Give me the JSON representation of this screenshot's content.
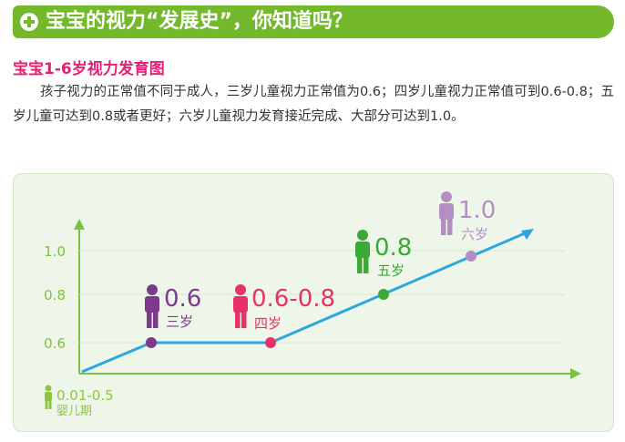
{
  "header": {
    "title": "宝宝的视力“发展史”，你知道吗？"
  },
  "subtitle": "宝宝1-6岁视力发育图",
  "paragraph": "孩子视力的正常值不同于成人，三岁儿童视力正常值为0.6；四岁儿童视力正常值可到0.6-0.8；五岁儿童可达到0.8或者更好；六岁儿童视力发育接近完成、大部分可达到1.0。",
  "chart": {
    "y_ticks": [
      "1.0",
      "0.8",
      "0.6"
    ],
    "stages": [
      {
        "value": "0.01-0.5",
        "age": "婴儿期",
        "color": "#8cc63f"
      },
      {
        "value": "0.6",
        "age": "三岁",
        "color": "#7d3a8c"
      },
      {
        "value": "0.6-0.8",
        "age": "四岁",
        "color": "#e5336a"
      },
      {
        "value": "0.8",
        "age": "五岁",
        "color": "#3aa935"
      },
      {
        "value": "1.0",
        "age": "六岁",
        "color": "#b48fc4"
      }
    ],
    "line_color": "#2ea7e0",
    "axis_color": "#7cc142"
  }
}
